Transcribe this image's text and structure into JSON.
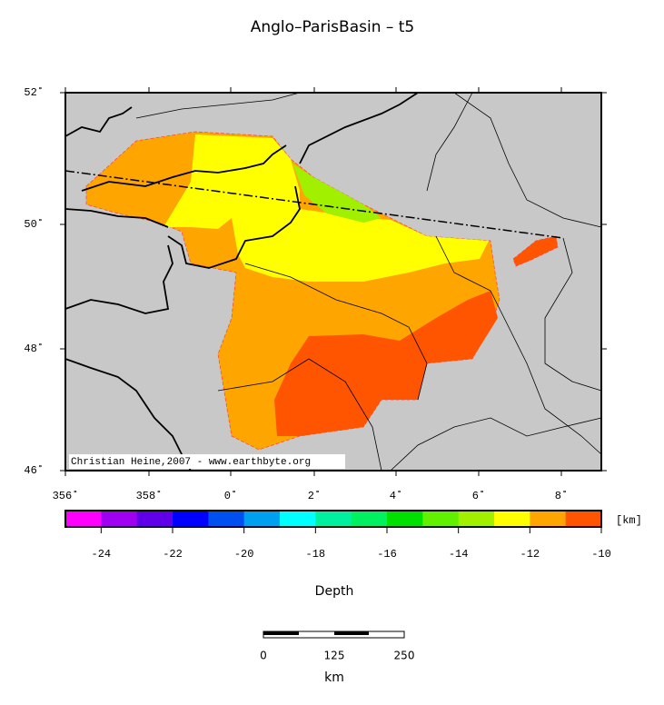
{
  "title": "Anglo–ParisBasin – t5",
  "map": {
    "lon_labels": [
      "356˚",
      "358˚",
      "0˚",
      "2˚",
      "4˚",
      "6˚",
      "8˚"
    ],
    "lat_labels": [
      "52˚",
      "50˚",
      "48˚",
      "46˚"
    ],
    "credit": "Christian Heine,2007 - www.earthbyte.org"
  },
  "colorbar": {
    "colors": [
      "#ff00ff",
      "#a000f0",
      "#6000e8",
      "#0000ff",
      "#0050f0",
      "#00a0f0",
      "#00ffff",
      "#00f0a0",
      "#00f060",
      "#00e000",
      "#60f000",
      "#a0f000",
      "#ffff00",
      "#ffa500",
      "#ff5500"
    ],
    "ticks": [
      -24,
      -22,
      -20,
      -18,
      -16,
      -14,
      -12,
      -10
    ],
    "unit": "[km]",
    "label": "Depth"
  },
  "scalebar": {
    "labels": [
      "0",
      "125",
      "250"
    ],
    "unit": "km"
  }
}
